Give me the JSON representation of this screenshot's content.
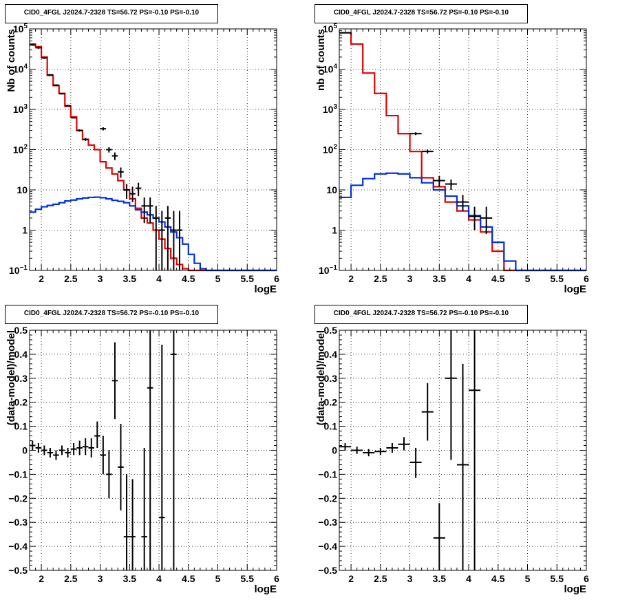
{
  "chart_data": [
    {
      "type": "step",
      "title": "CID0_4FGL J2024.7-2328 TS=56.72 PS=-0.10 PS=-0.10",
      "xlabel": "logE",
      "ylabel": "Nb of counts",
      "log_y": true,
      "xlim": [
        1.8,
        6
      ],
      "ylim": [
        0.1,
        100000
      ],
      "grid": true,
      "x_ticks": [
        "2",
        "2.5",
        "3",
        "3.5",
        "4",
        "4.5",
        "5",
        "5.5",
        "6"
      ],
      "y_ticks": [
        "10^-1",
        "1",
        "10",
        "10^2",
        "10^3",
        "10^4",
        "10^5"
      ],
      "bin_edges": [
        1.8,
        1.9,
        2.0,
        2.1,
        2.2,
        2.3,
        2.4,
        2.5,
        2.6,
        2.7,
        2.8,
        2.9,
        3.0,
        3.1,
        3.2,
        3.3,
        3.4,
        3.5,
        3.6,
        3.7,
        3.8,
        3.9,
        4.0,
        4.1,
        4.2,
        4.3,
        4.4,
        4.5,
        4.6,
        4.7,
        4.8,
        4.9,
        5.0,
        5.1,
        5.2,
        5.3,
        5.4,
        5.5,
        5.6,
        5.7,
        5.8,
        5.9,
        6.0
      ],
      "series": [
        {
          "color": "#e00000",
          "values": [
            42000,
            36000,
            20000,
            7000,
            3900,
            2500,
            1200,
            650,
            300,
            180,
            130,
            100,
            50,
            35,
            25,
            17,
            10,
            6,
            3.5,
            2.0,
            1.5,
            1.0,
            0.6,
            0.35,
            0.2,
            0.14,
            0.11,
            0.1,
            0.1,
            0.1,
            0.1,
            0.1,
            0.1,
            0.1,
            0.1,
            0.1,
            0.1,
            0.1,
            0.1,
            0.1,
            0.1,
            0.1
          ]
        },
        {
          "color": "#0030e0",
          "values": [
            2.8,
            3.3,
            3.8,
            4.1,
            4.4,
            4.8,
            5.3,
            5.6,
            6.0,
            6.3,
            6.5,
            6.6,
            6.4,
            6.0,
            5.5,
            5.2,
            4.8,
            4.0,
            3.2,
            2.8,
            2.4,
            2.0,
            1.6,
            1.2,
            0.9,
            0.65,
            0.45,
            0.25,
            0.15,
            0.11,
            0.1,
            0.1,
            0.1,
            0.1,
            0.1,
            0.1,
            0.1,
            0.1,
            0.1,
            0.1,
            0.1,
            0.1
          ]
        }
      ],
      "data_points": [
        {
          "x": 1.85,
          "y": 40000,
          "xerr": 0.05,
          "ylo": 38000,
          "yhi": 42000
        },
        {
          "x": 1.95,
          "y": 34000,
          "xerr": 0.05,
          "ylo": 32000,
          "yhi": 36000
        },
        {
          "x": 2.05,
          "y": 19000,
          "xerr": 0.05,
          "ylo": 18000,
          "yhi": 20000
        },
        {
          "x": 2.15,
          "y": 7200,
          "xerr": 0.05,
          "ylo": 6900,
          "yhi": 7500
        },
        {
          "x": 2.25,
          "y": 4000,
          "xerr": 0.05,
          "ylo": 3800,
          "yhi": 4200
        },
        {
          "x": 2.35,
          "y": 2450,
          "xerr": 0.05,
          "ylo": 2350,
          "yhi": 2550
        },
        {
          "x": 2.45,
          "y": 1230,
          "xerr": 0.05,
          "ylo": 1170,
          "yhi": 1290
        },
        {
          "x": 2.55,
          "y": 620,
          "xerr": 0.05,
          "ylo": 590,
          "yhi": 650
        },
        {
          "x": 2.65,
          "y": 300,
          "xerr": 0.05,
          "ylo": 280,
          "yhi": 320
        },
        {
          "x": 2.75,
          "y": 180,
          "xerr": 0.05,
          "ylo": 165,
          "yhi": 195
        },
        {
          "x": 3.05,
          "y": 330,
          "xerr": 0.05,
          "ylo": 300,
          "yhi": 360
        },
        {
          "x": 3.15,
          "y": 100,
          "xerr": 0.05,
          "ylo": 85,
          "yhi": 115
        },
        {
          "x": 3.25,
          "y": 70,
          "xerr": 0.05,
          "ylo": 55,
          "yhi": 85
        },
        {
          "x": 3.35,
          "y": 28,
          "xerr": 0.05,
          "ylo": 20,
          "yhi": 36
        },
        {
          "x": 3.45,
          "y": 10,
          "xerr": 0.05,
          "ylo": 6,
          "yhi": 14
        },
        {
          "x": 3.55,
          "y": 8,
          "xerr": 0.05,
          "ylo": 5,
          "yhi": 12
        },
        {
          "x": 3.65,
          "y": 11,
          "xerr": 0.05,
          "ylo": 7,
          "yhi": 15
        },
        {
          "x": 3.75,
          "y": 4,
          "xerr": 0.05,
          "ylo": 1.5,
          "yhi": 6.5
        },
        {
          "x": 3.85,
          "y": 4,
          "xerr": 0.05,
          "ylo": 1.5,
          "yhi": 6.5
        },
        {
          "x": 3.95,
          "y": 2,
          "xerr": 0.05,
          "ylo": 0.1,
          "yhi": 4
        },
        {
          "x": 4.05,
          "y": 1,
          "xerr": 0.05,
          "ylo": 0.1,
          "yhi": 3
        },
        {
          "x": 4.15,
          "y": 2,
          "xerr": 0.05,
          "ylo": 0.1,
          "yhi": 4
        },
        {
          "x": 4.25,
          "y": 1,
          "xerr": 0.05,
          "ylo": 0.1,
          "yhi": 3
        },
        {
          "x": 4.35,
          "y": 1,
          "xerr": 0.05,
          "ylo": 0.1,
          "yhi": 3
        }
      ]
    },
    {
      "type": "step",
      "title": "CID0_4FGL J2024.7-2328 TS=56.72 PS=-0.10 PS=-0.10",
      "xlabel": "logE",
      "ylabel": "nb of counts",
      "log_y": true,
      "xlim": [
        1.8,
        6
      ],
      "ylim": [
        0.1,
        100000
      ],
      "grid": true,
      "x_ticks": [
        "2",
        "2.5",
        "3",
        "3.5",
        "4",
        "4.5",
        "5",
        "5.5",
        "6"
      ],
      "y_ticks": [
        "10^-1",
        "1",
        "10",
        "10^2",
        "10^3",
        "10^4",
        "10^5"
      ],
      "bin_edges": [
        1.8,
        2.0,
        2.2,
        2.4,
        2.6,
        2.8,
        3.0,
        3.2,
        3.4,
        3.6,
        3.8,
        4.0,
        4.2,
        4.4,
        4.6,
        4.8,
        5.0,
        5.2,
        5.4,
        5.6,
        5.8,
        6.0
      ],
      "series": [
        {
          "color": "#e00000",
          "values": [
            80000,
            42000,
            8000,
            2500,
            700,
            250,
            90,
            20,
            12,
            5,
            3,
            1.8,
            0.9,
            0.3,
            0.1,
            0.1,
            0.1,
            0.1,
            0.1,
            0.1,
            0.1
          ]
        },
        {
          "color": "#0030e0",
          "values": [
            6.5,
            13,
            19,
            25,
            26,
            25,
            20,
            15,
            10,
            7,
            4,
            2.3,
            1.2,
            0.5,
            0.17,
            0.1,
            0.1,
            0.1,
            0.1,
            0.1,
            0.1
          ]
        }
      ],
      "data_points": [
        {
          "x": 1.9,
          "y": 80000,
          "xerr": 0.1,
          "ylo": 78000,
          "yhi": 82000
        },
        {
          "x": 3.1,
          "y": 250,
          "xerr": 0.1,
          "ylo": 230,
          "yhi": 270
        },
        {
          "x": 3.3,
          "y": 90,
          "xerr": 0.1,
          "ylo": 80,
          "yhi": 100
        },
        {
          "x": 3.5,
          "y": 17,
          "xerr": 0.1,
          "ylo": 12,
          "yhi": 22
        },
        {
          "x": 3.7,
          "y": 14,
          "xerr": 0.1,
          "ylo": 10,
          "yhi": 18
        },
        {
          "x": 3.9,
          "y": 5,
          "xerr": 0.1,
          "ylo": 3,
          "yhi": 7.5
        },
        {
          "x": 4.1,
          "y": 2.2,
          "xerr": 0.1,
          "ylo": 1.0,
          "yhi": 3.8
        },
        {
          "x": 4.3,
          "y": 2,
          "xerr": 0.1,
          "ylo": 0.8,
          "yhi": 3.8
        }
      ]
    },
    {
      "type": "scatter",
      "title": "CID0_4FGL J2024.7-2328 TS=56.72 PS=-0.10 PS=-0.10",
      "xlabel": "logE",
      "ylabel": "(data-model)/model",
      "log_y": false,
      "xlim": [
        1.8,
        6
      ],
      "ylim": [
        -0.5,
        0.5
      ],
      "grid": true,
      "x_ticks": [
        "2",
        "2.5",
        "3",
        "3.5",
        "4",
        "4.5",
        "5",
        "5.5",
        "6"
      ],
      "y_ticks": [
        "−0.5",
        "−0.4",
        "−0.3",
        "−0.2",
        "−0.1",
        "0",
        "0.1",
        "0.2",
        "0.3",
        "0.4",
        "0.5"
      ],
      "data_points": [
        {
          "x": 1.85,
          "y": 0.02,
          "xerr": 0.05,
          "ylo": 0.0,
          "yhi": 0.04
        },
        {
          "x": 1.95,
          "y": 0.01,
          "xerr": 0.05,
          "ylo": -0.01,
          "yhi": 0.03
        },
        {
          "x": 2.05,
          "y": 0.0,
          "xerr": 0.05,
          "ylo": -0.02,
          "yhi": 0.02
        },
        {
          "x": 2.15,
          "y": -0.01,
          "xerr": 0.05,
          "ylo": -0.03,
          "yhi": 0.01
        },
        {
          "x": 2.25,
          "y": -0.02,
          "xerr": 0.05,
          "ylo": -0.04,
          "yhi": 0.0
        },
        {
          "x": 2.35,
          "y": 0.0,
          "xerr": 0.05,
          "ylo": -0.02,
          "yhi": 0.02
        },
        {
          "x": 2.45,
          "y": -0.01,
          "xerr": 0.05,
          "ylo": -0.03,
          "yhi": 0.01
        },
        {
          "x": 2.55,
          "y": 0.005,
          "xerr": 0.05,
          "ylo": -0.02,
          "yhi": 0.03
        },
        {
          "x": 2.65,
          "y": 0.01,
          "xerr": 0.05,
          "ylo": -0.02,
          "yhi": 0.04
        },
        {
          "x": 2.75,
          "y": 0.015,
          "xerr": 0.05,
          "ylo": -0.02,
          "yhi": 0.05
        },
        {
          "x": 2.85,
          "y": 0.01,
          "xerr": 0.05,
          "ylo": -0.03,
          "yhi": 0.05
        },
        {
          "x": 2.95,
          "y": 0.06,
          "xerr": 0.05,
          "ylo": 0.01,
          "yhi": 0.12
        },
        {
          "x": 3.05,
          "y": -0.02,
          "xerr": 0.05,
          "ylo": -0.1,
          "yhi": 0.06
        },
        {
          "x": 3.15,
          "y": -0.1,
          "xerr": 0.05,
          "ylo": -0.2,
          "yhi": 0.0
        },
        {
          "x": 3.25,
          "y": 0.29,
          "xerr": 0.05,
          "ylo": 0.13,
          "yhi": 0.45
        },
        {
          "x": 3.35,
          "y": -0.07,
          "xerr": 0.05,
          "ylo": -0.25,
          "yhi": 0.11
        },
        {
          "x": 3.45,
          "y": -0.36,
          "xerr": 0.05,
          "ylo": -0.5,
          "yhi": -0.1
        },
        {
          "x": 3.55,
          "y": -0.36,
          "xerr": 0.05,
          "ylo": -0.5,
          "yhi": -0.12
        },
        {
          "x": 3.75,
          "y": -0.36,
          "xerr": 0.05,
          "ylo": -0.5,
          "yhi": 0.01
        },
        {
          "x": 3.85,
          "y": 0.26,
          "xerr": 0.05,
          "ylo": -0.5,
          "yhi": 0.5
        },
        {
          "x": 4.05,
          "y": -0.28,
          "xerr": 0.05,
          "ylo": -0.5,
          "yhi": 0.44
        },
        {
          "x": 4.25,
          "y": 0.4,
          "xerr": 0.05,
          "ylo": -0.5,
          "yhi": 0.5
        }
      ]
    },
    {
      "type": "scatter",
      "title": "CID0_4FGL J2024.7-2328 TS=56.72 PS=-0.10 PS=-0.10",
      "xlabel": "logE",
      "ylabel": "(data-model)/model",
      "log_y": false,
      "xlim": [
        1.8,
        6
      ],
      "ylim": [
        -0.5,
        0.5
      ],
      "grid": true,
      "x_ticks": [
        "2",
        "2.5",
        "3",
        "3.5",
        "4",
        "4.5",
        "5",
        "5.5",
        "6"
      ],
      "y_ticks": [
        "−0.5",
        "−0.4",
        "−0.3",
        "−0.2",
        "−0.1",
        "0",
        "0.1",
        "0.2",
        "0.3",
        "0.4",
        "0.5"
      ],
      "data_points": [
        {
          "x": 1.9,
          "y": 0.015,
          "xerr": 0.1,
          "ylo": 0.0,
          "yhi": 0.03
        },
        {
          "x": 2.1,
          "y": 0.0,
          "xerr": 0.1,
          "ylo": -0.015,
          "yhi": 0.015
        },
        {
          "x": 2.3,
          "y": -0.01,
          "xerr": 0.1,
          "ylo": -0.025,
          "yhi": 0.005
        },
        {
          "x": 2.5,
          "y": -0.005,
          "xerr": 0.1,
          "ylo": -0.02,
          "yhi": 0.01
        },
        {
          "x": 2.7,
          "y": 0.01,
          "xerr": 0.1,
          "ylo": -0.01,
          "yhi": 0.03
        },
        {
          "x": 2.9,
          "y": 0.025,
          "xerr": 0.1,
          "ylo": 0.0,
          "yhi": 0.055
        },
        {
          "x": 3.1,
          "y": -0.05,
          "xerr": 0.1,
          "ylo": -0.115,
          "yhi": 0.01
        },
        {
          "x": 3.3,
          "y": 0.16,
          "xerr": 0.1,
          "ylo": 0.04,
          "yhi": 0.28
        },
        {
          "x": 3.5,
          "y": -0.365,
          "xerr": 0.1,
          "ylo": -0.5,
          "yhi": -0.22
        },
        {
          "x": 3.7,
          "y": 0.3,
          "xerr": 0.1,
          "ylo": -0.04,
          "yhi": 0.5
        },
        {
          "x": 3.9,
          "y": -0.06,
          "xerr": 0.1,
          "ylo": -0.5,
          "yhi": 0.36
        },
        {
          "x": 4.1,
          "y": 0.25,
          "xerr": 0.1,
          "ylo": -0.5,
          "yhi": 0.5
        }
      ]
    }
  ]
}
